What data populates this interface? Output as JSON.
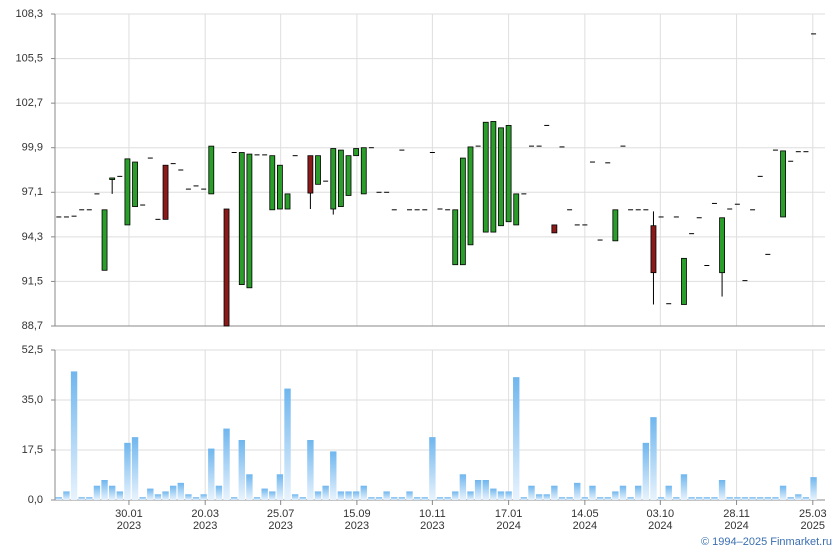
{
  "chart_data": [
    {
      "type": "candlestick",
      "xlim": [
        -0.5,
        100.5
      ],
      "ylim": [
        88.7,
        108.3
      ],
      "yticks": [
        {
          "value": 88.7,
          "label": "88,7"
        },
        {
          "value": 91.5,
          "label": "91,5"
        },
        {
          "value": 94.3,
          "label": "94,3"
        },
        {
          "value": 97.1,
          "label": "97,1"
        },
        {
          "value": 99.9,
          "label": "99,9"
        },
        {
          "value": 102.7,
          "label": "102,7"
        },
        {
          "value": 105.5,
          "label": "105,5"
        },
        {
          "value": 108.3,
          "label": "108,3"
        }
      ],
      "up_color": "#2a9d2a",
      "down_color": "#8b1a1a",
      "grid": true,
      "open": [
        95.55,
        95.55,
        95.6,
        96.0,
        96.0,
        97.0,
        92.2,
        97.9,
        98.1,
        95.05,
        96.2,
        96.3,
        99.25,
        95.4,
        98.8,
        98.9,
        98.5,
        97.3,
        97.5,
        97.3,
        97.0,
        null,
        96.05,
        99.6,
        91.3,
        91.1,
        99.45,
        99.45,
        96.0,
        96.05,
        96.05,
        99.4,
        null,
        99.4,
        97.6,
        97.8,
        96.05,
        96.2,
        96.9,
        99.4,
        97.0,
        99.9,
        97.1,
        97.1,
        96.0,
        99.75,
        96.0,
        96.0,
        96.0,
        99.6,
        96.05,
        96.0,
        92.55,
        92.55,
        93.8,
        100.0,
        94.6,
        94.6,
        95.0,
        95.25,
        95.05,
        97.0,
        100.0,
        100.0,
        101.3,
        95.05,
        99.95,
        96.0,
        95.05,
        95.05,
        99.0,
        94.1,
        98.95,
        94.05,
        100.0,
        96.0,
        96.0,
        96.0,
        95.0,
        95.55,
        90.1,
        95.55,
        90.05,
        94.5,
        95.5,
        92.5,
        96.4,
        92.05,
        96.05,
        96.35,
        91.55,
        96.0,
        98.1,
        93.2,
        99.75,
        95.55,
        99.05,
        99.65,
        99.65,
        107.05
      ],
      "high": [
        95.55,
        95.55,
        95.6,
        96.0,
        96.0,
        97.0,
        96.0,
        98.0,
        98.1,
        99.2,
        99.0,
        96.3,
        99.25,
        95.4,
        98.8,
        98.9,
        98.5,
        97.3,
        97.5,
        97.3,
        100.0,
        null,
        96.05,
        99.6,
        99.6,
        99.5,
        99.45,
        99.45,
        99.4,
        98.8,
        97.0,
        99.4,
        null,
        99.4,
        99.4,
        97.8,
        99.85,
        99.75,
        99.4,
        99.85,
        99.9,
        99.9,
        97.1,
        97.1,
        96.0,
        99.75,
        96.0,
        96.0,
        96.0,
        99.6,
        96.05,
        96.0,
        96.0,
        99.25,
        99.95,
        100.0,
        101.5,
        101.55,
        101.15,
        101.3,
        97.0,
        97.0,
        100.0,
        100.0,
        101.3,
        95.05,
        99.95,
        96.0,
        95.05,
        95.05,
        99.0,
        94.1,
        98.95,
        96.0,
        100.0,
        96.0,
        96.0,
        96.0,
        95.9,
        95.55,
        90.1,
        95.55,
        92.95,
        94.5,
        95.5,
        92.5,
        96.4,
        95.5,
        96.05,
        96.35,
        91.55,
        96.0,
        98.1,
        93.2,
        99.75,
        99.7,
        99.05,
        99.65,
        99.65,
        107.05
      ],
      "low": [
        95.55,
        95.55,
        95.6,
        96.0,
        96.0,
        97.0,
        92.2,
        97.0,
        98.1,
        95.05,
        96.2,
        96.3,
        99.25,
        95.4,
        95.4,
        98.9,
        98.5,
        97.3,
        97.5,
        97.3,
        97.0,
        null,
        88.7,
        99.6,
        91.3,
        91.1,
        99.45,
        99.45,
        96.0,
        96.05,
        96.05,
        99.4,
        null,
        96.05,
        97.6,
        97.8,
        95.7,
        96.2,
        96.9,
        99.4,
        97.0,
        99.9,
        97.1,
        97.1,
        96.0,
        99.75,
        96.0,
        96.0,
        96.0,
        99.6,
        96.05,
        96.0,
        92.55,
        92.55,
        93.8,
        100.0,
        94.6,
        94.6,
        95.0,
        95.25,
        95.05,
        97.0,
        100.0,
        100.0,
        101.3,
        94.55,
        99.95,
        96.0,
        95.05,
        95.05,
        99.0,
        94.1,
        98.95,
        94.05,
        100.0,
        96.0,
        96.0,
        96.0,
        90.05,
        95.55,
        90.1,
        95.55,
        90.05,
        94.5,
        95.5,
        92.5,
        96.4,
        90.55,
        96.05,
        96.35,
        91.55,
        96.0,
        98.1,
        93.2,
        99.75,
        95.55,
        99.05,
        99.65,
        99.65,
        107.05
      ],
      "close": [
        95.55,
        95.55,
        95.6,
        96.0,
        96.0,
        97.0,
        96.0,
        98.0,
        98.1,
        99.2,
        99.0,
        96.3,
        99.25,
        95.4,
        95.4,
        98.9,
        98.5,
        97.3,
        97.5,
        97.3,
        100.0,
        null,
        88.7,
        99.6,
        99.6,
        99.5,
        99.45,
        99.45,
        99.4,
        98.8,
        97.0,
        99.4,
        null,
        97.05,
        99.4,
        97.8,
        99.85,
        99.75,
        99.4,
        99.85,
        99.9,
        99.9,
        97.1,
        97.1,
        96.0,
        99.75,
        96.0,
        96.0,
        96.0,
        99.6,
        96.05,
        96.0,
        96.0,
        99.25,
        99.95,
        100.0,
        101.5,
        101.55,
        101.15,
        101.3,
        97.0,
        97.0,
        100.0,
        100.0,
        101.3,
        94.55,
        99.95,
        96.0,
        95.05,
        95.05,
        99.0,
        94.1,
        98.95,
        96.0,
        100.0,
        96.0,
        96.0,
        96.0,
        92.05,
        95.55,
        90.1,
        95.55,
        92.95,
        94.5,
        95.5,
        92.5,
        96.4,
        95.5,
        96.05,
        96.35,
        91.55,
        96.0,
        98.1,
        93.2,
        99.75,
        99.7,
        99.05,
        99.65,
        99.65,
        107.05
      ]
    },
    {
      "type": "bar",
      "xlim": [
        -0.5,
        100.5
      ],
      "ylim": [
        0,
        52.5
      ],
      "yticks": [
        {
          "value": 0,
          "label": "0,0"
        },
        {
          "value": 17.5,
          "label": "17,5"
        },
        {
          "value": 35,
          "label": "35,0"
        },
        {
          "value": 52.5,
          "label": "52,5"
        }
      ],
      "xticks": [
        {
          "value": 9.2,
          "label": [
            "30.01",
            "2023"
          ]
        },
        {
          "value": 19.2,
          "label": [
            "20.03",
            "2023"
          ]
        },
        {
          "value": 29.1,
          "label": [
            "25.07",
            "2023"
          ]
        },
        {
          "value": 39.1,
          "label": [
            "15.09",
            "2023"
          ]
        },
        {
          "value": 49.0,
          "label": [
            "10.11",
            "2023"
          ]
        },
        {
          "value": 59.0,
          "label": [
            "17.01",
            "2024"
          ]
        },
        {
          "value": 69.0,
          "label": [
            "14.05",
            "2024"
          ]
        },
        {
          "value": 78.9,
          "label": [
            "03.10",
            "2024"
          ]
        },
        {
          "value": 88.9,
          "label": [
            "28.11",
            "2024"
          ]
        },
        {
          "value": 98.9,
          "label": [
            "25.03",
            "2025"
          ]
        }
      ],
      "color": "#6fb6ee",
      "grid": true,
      "values": [
        1,
        3,
        45,
        1,
        1,
        5,
        7,
        5,
        3,
        20,
        22,
        1,
        4,
        2,
        3,
        5,
        6,
        2,
        1,
        2,
        18,
        5,
        25,
        1,
        21,
        9,
        1,
        4,
        3,
        9,
        39,
        2,
        1,
        21,
        3,
        5,
        17,
        3,
        3,
        3,
        5,
        1,
        1,
        3,
        1,
        1,
        3,
        1,
        1,
        22,
        1,
        1,
        3,
        9,
        3,
        7,
        7,
        4,
        3,
        3,
        43,
        1,
        5,
        2,
        2,
        5,
        1,
        1,
        6,
        1,
        5,
        1,
        1,
        3,
        5,
        1,
        5,
        20,
        29,
        1,
        5,
        1,
        9,
        1,
        1,
        1,
        1,
        7,
        1,
        1,
        1,
        1,
        1,
        1,
        1,
        5,
        1,
        2,
        1,
        8
      ]
    }
  ],
  "copyright": "© 1994–2025 Finmarket.ru"
}
